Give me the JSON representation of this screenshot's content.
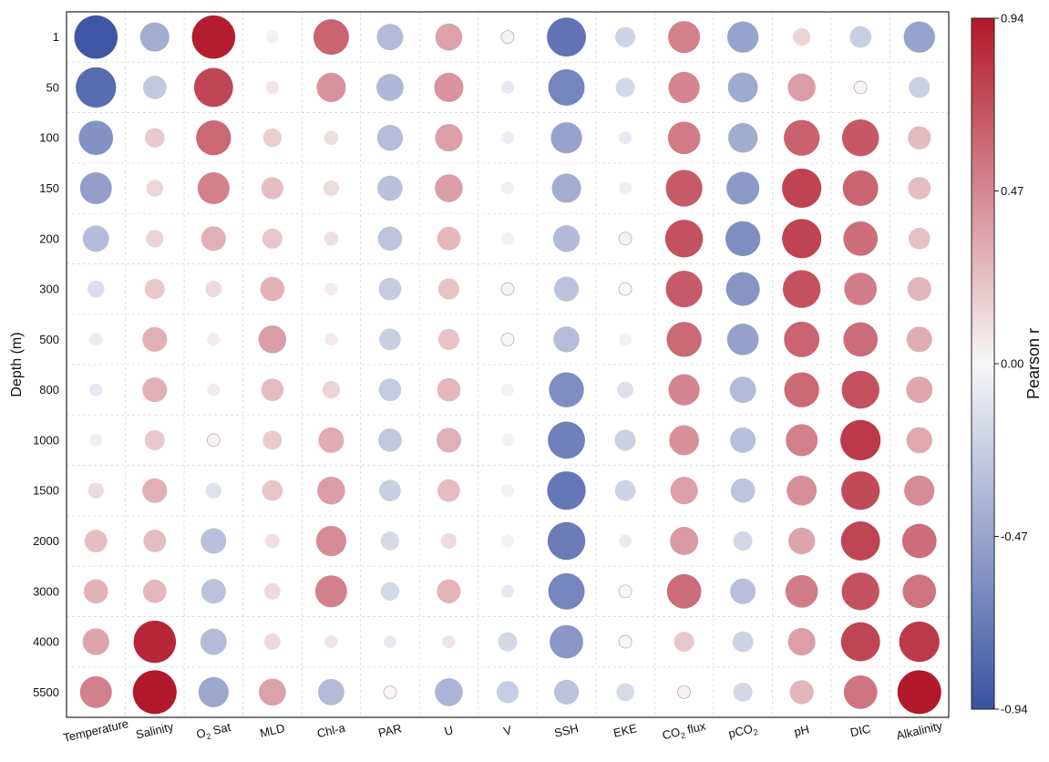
{
  "chart_data": {
    "type": "heatmap",
    "subtype": "bubble-correlation-matrix",
    "ylabel": "Depth (m)",
    "xlabel": "",
    "x": [
      {
        "base": "Temperature",
        "sub": "",
        "rest": ""
      },
      {
        "base": "Salinity",
        "sub": "",
        "rest": ""
      },
      {
        "base": "O",
        "sub": "2",
        "rest": " Sat"
      },
      {
        "base": "MLD",
        "sub": "",
        "rest": ""
      },
      {
        "base": "Chl-a",
        "sub": "",
        "rest": ""
      },
      {
        "base": "PAR",
        "sub": "",
        "rest": ""
      },
      {
        "base": "U",
        "sub": "",
        "rest": ""
      },
      {
        "base": "V",
        "sub": "",
        "rest": ""
      },
      {
        "base": "SSH",
        "sub": "",
        "rest": ""
      },
      {
        "base": "EKE",
        "sub": "",
        "rest": ""
      },
      {
        "base": "CO",
        "sub": "2",
        "rest": " flux"
      },
      {
        "base": "pCO",
        "sub": "2",
        "rest": ""
      },
      {
        "base": "pH",
        "sub": "",
        "rest": ""
      },
      {
        "base": "DIC",
        "sub": "",
        "rest": ""
      },
      {
        "base": "Alkalinity",
        "sub": "",
        "rest": ""
      }
    ],
    "y": [
      "1",
      "50",
      "100",
      "150",
      "200",
      "300",
      "500",
      "800",
      "1000",
      "1500",
      "2000",
      "3000",
      "4000",
      "5500"
    ],
    "values": [
      [
        -0.92,
        -0.42,
        0.92,
        -0.03,
        0.62,
        -0.34,
        0.36,
        -0.02,
        -0.75,
        -0.2,
        0.5,
        -0.48,
        0.15,
        -0.23,
        -0.48
      ],
      [
        -0.8,
        -0.27,
        0.75,
        0.08,
        0.42,
        -0.36,
        0.42,
        -0.08,
        -0.65,
        -0.18,
        0.48,
        -0.44,
        0.38,
        0.01,
        -0.22
      ],
      [
        -0.58,
        0.19,
        0.6,
        0.17,
        0.1,
        -0.33,
        0.37,
        -0.05,
        -0.48,
        -0.08,
        0.52,
        -0.43,
        0.63,
        0.67,
        0.26
      ],
      [
        -0.5,
        0.14,
        0.5,
        0.24,
        0.12,
        -0.31,
        0.38,
        -0.04,
        -0.42,
        -0.04,
        0.66,
        -0.53,
        0.76,
        0.62,
        0.25
      ],
      [
        -0.34,
        0.15,
        0.3,
        0.2,
        0.1,
        -0.29,
        0.27,
        -0.03,
        -0.35,
        -0.02,
        0.7,
        -0.6,
        0.76,
        0.58,
        0.23
      ],
      [
        -0.14,
        0.2,
        0.13,
        0.29,
        0.05,
        -0.25,
        0.22,
        -0.02,
        -0.3,
        0.0,
        0.66,
        -0.56,
        0.7,
        0.52,
        0.28
      ],
      [
        -0.06,
        0.3,
        0.05,
        0.38,
        0.06,
        -0.23,
        0.22,
        0.0,
        -0.33,
        -0.03,
        0.6,
        -0.49,
        0.62,
        0.58,
        0.32
      ],
      [
        -0.08,
        0.3,
        0.05,
        0.25,
        0.15,
        -0.25,
        0.27,
        -0.03,
        -0.6,
        -0.13,
        0.48,
        -0.34,
        0.6,
        0.7,
        0.34
      ],
      [
        -0.04,
        0.2,
        0.02,
        0.18,
        0.32,
        -0.27,
        0.3,
        -0.03,
        -0.68,
        -0.22,
        0.44,
        -0.32,
        0.5,
        0.8,
        0.33
      ],
      [
        0.12,
        0.3,
        -0.12,
        0.21,
        0.38,
        -0.23,
        0.25,
        -0.03,
        -0.73,
        -0.21,
        0.37,
        -0.29,
        0.44,
        0.73,
        0.45
      ],
      [
        0.25,
        0.25,
        -0.32,
        0.1,
        0.45,
        -0.17,
        0.12,
        -0.03,
        -0.7,
        -0.07,
        0.39,
        -0.18,
        0.35,
        0.75,
        0.58
      ],
      [
        0.29,
        0.27,
        -0.3,
        0.13,
        0.5,
        -0.17,
        0.28,
        -0.08,
        -0.65,
        0.0,
        0.58,
        -0.32,
        0.52,
        0.7,
        0.55
      ],
      [
        0.35,
        0.88,
        -0.34,
        0.13,
        0.08,
        -0.08,
        0.08,
        -0.18,
        -0.55,
        0.0,
        0.2,
        -0.21,
        0.37,
        0.75,
        0.8
      ],
      [
        0.5,
        0.94,
        -0.45,
        0.36,
        -0.34,
        0.0,
        -0.38,
        -0.24,
        -0.3,
        -0.16,
        0.02,
        -0.18,
        0.28,
        0.55,
        0.94
      ]
    ],
    "colorbar": {
      "label": "Pearson r",
      "range": [
        -0.94,
        0.94
      ],
      "ticks": [
        "0.94",
        "0.47",
        "0.00",
        "-0.47",
        "-0.94"
      ],
      "tick_values": [
        0.94,
        0.47,
        0.0,
        -0.47,
        -0.94
      ],
      "low_color": "#3b52a3",
      "mid_color": "#f7f7f7",
      "high_color": "#b2182b"
    },
    "grid": true
  }
}
